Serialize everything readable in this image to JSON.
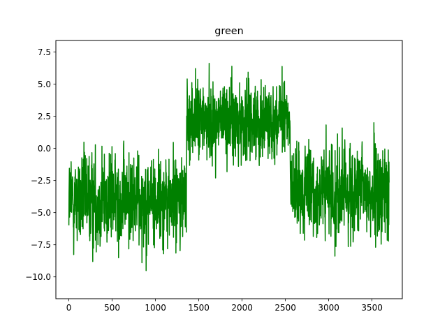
{
  "chart_data": {
    "type": "line",
    "title": "green",
    "xlabel": "",
    "ylabel": "",
    "xlim": [
      -150,
      3850
    ],
    "ylim": [
      -11.7,
      8.4
    ],
    "grid": false,
    "legend": "none",
    "line_color": "#008000",
    "xticks": [
      0,
      500,
      1000,
      1500,
      2000,
      2500,
      3000,
      3500
    ],
    "xtick_labels": [
      "0",
      "500",
      "1000",
      "1500",
      "2000",
      "2500",
      "3000",
      "3500"
    ],
    "yticks": [
      -10.0,
      -7.5,
      -5.0,
      -2.5,
      0.0,
      2.5,
      5.0,
      7.5
    ],
    "ytick_labels": [
      "−10.0",
      "−7.5",
      "−5.0",
      "−2.5",
      "0.0",
      "2.5",
      "5.0",
      "7.5"
    ],
    "series": [
      {
        "segments": [
          {
            "x_start": 0,
            "x_end": 1360,
            "mean": -4.0,
            "low": -10.8,
            "high": 1.2
          },
          {
            "x_start": 1360,
            "x_end": 2560,
            "mean": 2.2,
            "low": -2.3,
            "high": 7.5
          },
          {
            "x_start": 2560,
            "x_end": 3700,
            "mean": -3.5,
            "low": -10.0,
            "high": 2.0
          }
        ]
      }
    ]
  }
}
